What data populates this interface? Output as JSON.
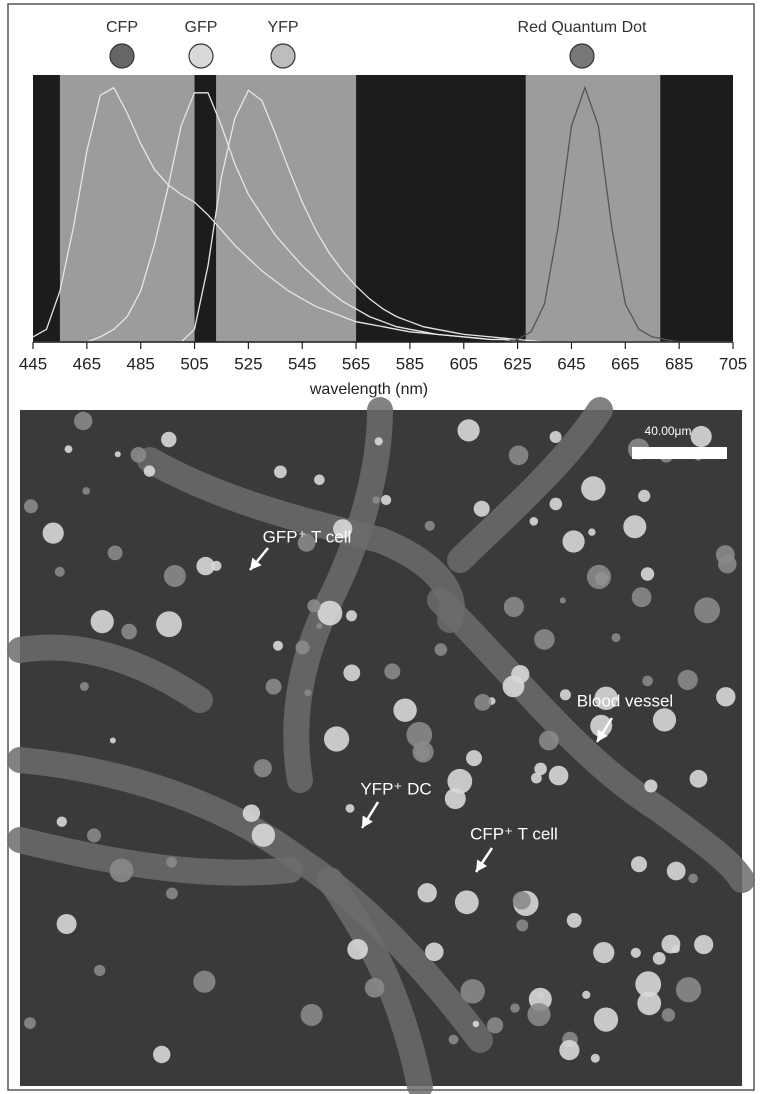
{
  "chart_data": {
    "type": "line",
    "legend": [
      {
        "name": "CFP",
        "color": "#666666"
      },
      {
        "name": "GFP",
        "color": "#d9d9d9"
      },
      {
        "name": "YFP",
        "color": "#bdbdbd"
      },
      {
        "name": "Red Quantum Dot",
        "color": "#777777"
      }
    ],
    "xlabel": "wavelength (nm)",
    "background": "#1c1c1c",
    "bands": [
      [
        455,
        505
      ],
      [
        513,
        565
      ],
      [
        628,
        678
      ]
    ],
    "band_color": "#9c9c9c",
    "xlim": [
      445,
      705
    ],
    "ylim": [
      0,
      1.05
    ],
    "xticks": [
      445,
      465,
      485,
      505,
      525,
      545,
      565,
      585,
      605,
      625,
      645,
      665,
      685,
      705
    ],
    "x": [
      445,
      450,
      455,
      460,
      465,
      470,
      475,
      480,
      485,
      490,
      495,
      500,
      505,
      510,
      515,
      520,
      525,
      530,
      535,
      540,
      545,
      550,
      555,
      560,
      565,
      570,
      575,
      580,
      585,
      590,
      595,
      600,
      605,
      610,
      615,
      620,
      625,
      630,
      635,
      640,
      645,
      650,
      655,
      660,
      665,
      670,
      675,
      680,
      685,
      690,
      695,
      700,
      705
    ],
    "series": [
      {
        "name": "CFP",
        "color": "#e6e6e6",
        "values": [
          0.02,
          0.05,
          0.2,
          0.45,
          0.75,
          0.97,
          1.0,
          0.9,
          0.78,
          0.68,
          0.62,
          0.58,
          0.55,
          0.5,
          0.44,
          0.38,
          0.33,
          0.28,
          0.24,
          0.2,
          0.17,
          0.14,
          0.12,
          0.1,
          0.08,
          0.07,
          0.06,
          0.05,
          0.04,
          0.035,
          0.03,
          0.025,
          0.02,
          0.015,
          0.01,
          0.01,
          0,
          0,
          0,
          0,
          0,
          0,
          0,
          0,
          0,
          0,
          0,
          0,
          0,
          0,
          0,
          0,
          0
        ]
      },
      {
        "name": "GFP",
        "color": "#e6e6e6",
        "values": [
          0,
          0,
          0,
          0,
          0,
          0.02,
          0.05,
          0.1,
          0.2,
          0.38,
          0.6,
          0.85,
          0.98,
          0.98,
          0.85,
          0.7,
          0.58,
          0.5,
          0.42,
          0.36,
          0.3,
          0.25,
          0.2,
          0.16,
          0.13,
          0.1,
          0.08,
          0.06,
          0.05,
          0.04,
          0.03,
          0.025,
          0.02,
          0.015,
          0.01,
          0.01,
          0,
          0,
          0,
          0,
          0,
          0,
          0,
          0,
          0,
          0,
          0,
          0,
          0,
          0,
          0,
          0,
          0
        ]
      },
      {
        "name": "YFP",
        "color": "#e6e6e6",
        "values": [
          0,
          0,
          0,
          0,
          0,
          0,
          0,
          0,
          0,
          0,
          0,
          0,
          0.05,
          0.3,
          0.65,
          0.88,
          0.99,
          0.95,
          0.82,
          0.68,
          0.55,
          0.44,
          0.35,
          0.28,
          0.22,
          0.17,
          0.13,
          0.1,
          0.08,
          0.06,
          0.05,
          0.04,
          0.03,
          0.025,
          0.02,
          0.015,
          0.01,
          0.005,
          0,
          0,
          0,
          0,
          0,
          0,
          0,
          0,
          0,
          0,
          0,
          0,
          0,
          0,
          0
        ]
      },
      {
        "name": "Red Quantum Dot",
        "color": "#555555",
        "values": [
          0,
          0,
          0,
          0,
          0,
          0,
          0,
          0,
          0,
          0,
          0,
          0,
          0,
          0,
          0,
          0,
          0,
          0,
          0,
          0,
          0,
          0,
          0,
          0,
          0,
          0,
          0,
          0,
          0,
          0,
          0,
          0,
          0,
          0,
          0,
          0,
          0.01,
          0.04,
          0.15,
          0.45,
          0.85,
          1.0,
          0.85,
          0.45,
          0.15,
          0.05,
          0.02,
          0.01,
          0,
          0,
          0,
          0,
          0
        ]
      }
    ]
  },
  "image": {
    "scale_bar": "40.00μm",
    "annotations": [
      "GFP⁺ T cell",
      "Blood vessel",
      "YFP⁺ DC",
      "CFP⁺ T cell"
    ]
  }
}
